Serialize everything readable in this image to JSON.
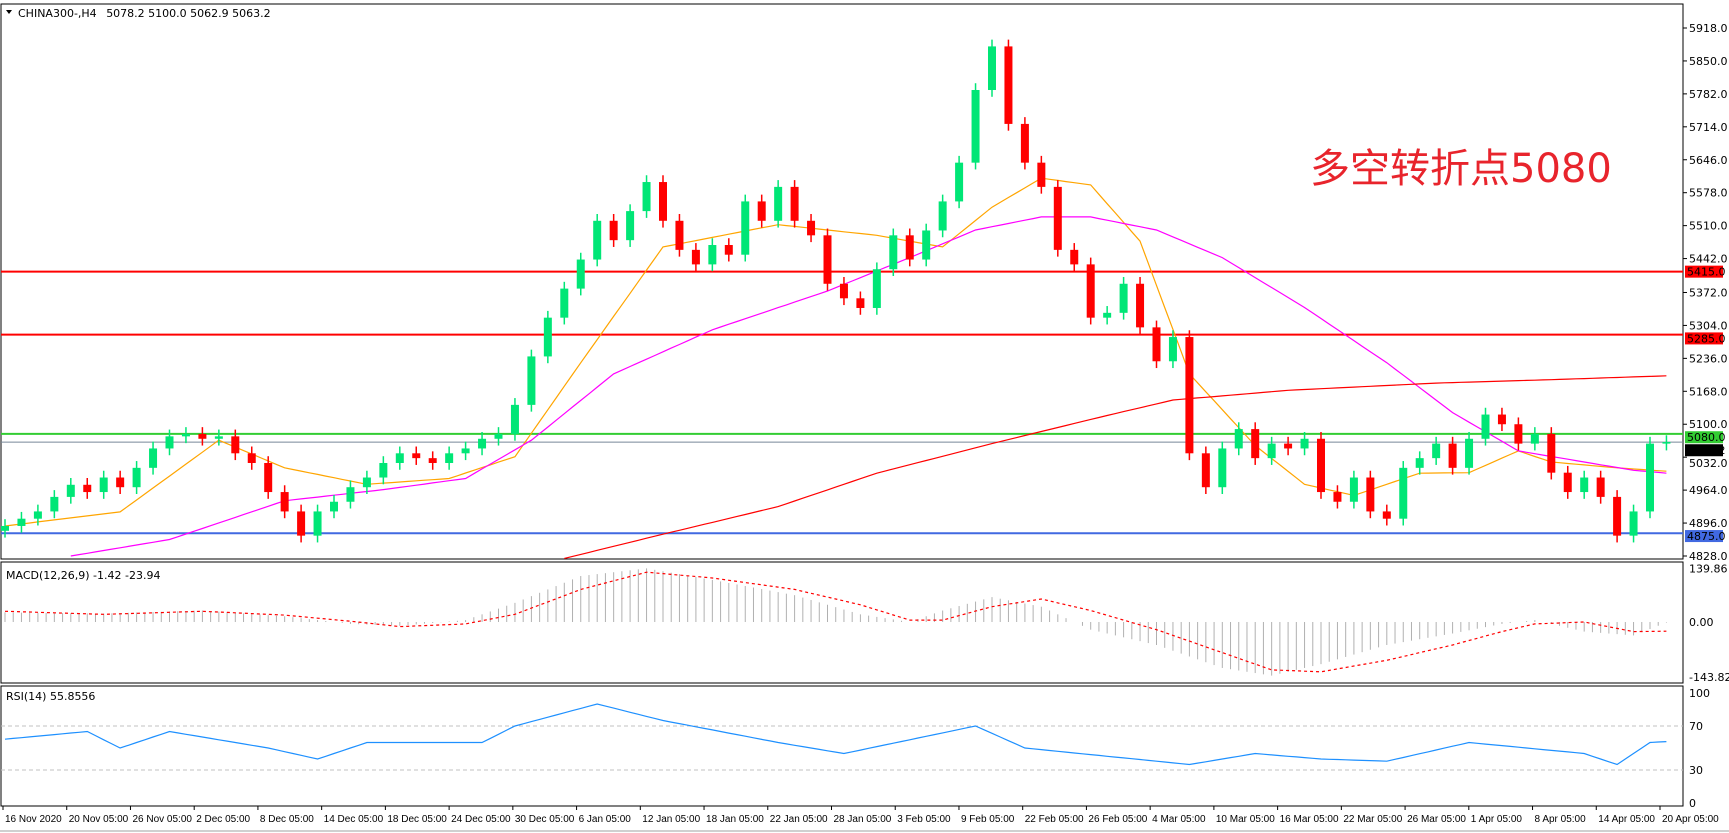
{
  "header": {
    "symbol": "CHINA300-,H4",
    "ohlc_text": "5078.2 5100.0 5062.9 5063.2"
  },
  "annotation": {
    "text": "多空转折点5080",
    "color": "#e8242c"
  },
  "colors": {
    "bull": "#00e676",
    "bear": "#ff0000",
    "ma_fast": "#ffa500",
    "ma_mid": "#ff00ff",
    "ma_slow": "#ff0000",
    "macd_hist": "#b0b0b0",
    "macd_signal": "#ff0000",
    "rsi": "#1e90ff"
  },
  "chart_data": [
    {
      "type": "candlestick",
      "title": "CHINA300-,H4",
      "ylim": [
        4828,
        5918
      ],
      "y_ticks": [
        "5918.0",
        "5850.0",
        "5782.0",
        "5714.0",
        "5646.0",
        "5578.0",
        "5510.0",
        "5442.0",
        "5372.0",
        "5304.0",
        "5236.0",
        "5168.0",
        "5100.0",
        "5032.0",
        "4964.0",
        "4896.0",
        "4828.0"
      ],
      "x_tick_labels": [
        "16 Nov 2020",
        "20 Nov 05:00",
        "26 Nov 05:00",
        "2 Dec 05:00",
        "8 Dec 05:00",
        "14 Dec 05:00",
        "18 Dec 05:00",
        "24 Dec 05:00",
        "30 Dec 05:00",
        "6 Jan 05:00",
        "12 Jan 05:00",
        "18 Jan 05:00",
        "22 Jan 05:00",
        "28 Jan 05:00",
        "3 Feb 05:00",
        "9 Feb 05:00",
        "22 Feb 05:00",
        "26 Feb 05:00",
        "4 Mar 05:00",
        "10 Mar 05:00",
        "16 Mar 05:00",
        "22 Mar 05:00",
        "26 Mar 05:00",
        "1 Apr 05:00",
        "8 Apr 05:00",
        "14 Apr 05:00",
        "20 Apr 05:00"
      ],
      "first_open": 4880,
      "close": [
        4890,
        4905,
        4920,
        4950,
        4975,
        4960,
        4990,
        4970,
        5010,
        5050,
        5075,
        5080,
        5070,
        5075,
        5040,
        5020,
        4960,
        4920,
        4870,
        4920,
        4940,
        4970,
        4990,
        5020,
        5040,
        5030,
        5020,
        5040,
        5050,
        5070,
        5080,
        5140,
        5240,
        5320,
        5380,
        5440,
        5520,
        5480,
        5540,
        5600,
        5520,
        5460,
        5430,
        5470,
        5450,
        5560,
        5520,
        5590,
        5520,
        5490,
        5390,
        5360,
        5340,
        5420,
        5490,
        5440,
        5500,
        5560,
        5640,
        5790,
        5880,
        5720,
        5640,
        5590,
        5460,
        5430,
        5320,
        5330,
        5390,
        5300,
        5230,
        5280,
        5040,
        4970,
        5050,
        5090,
        5030,
        5060,
        5050,
        5070,
        4960,
        4940,
        4990,
        4920,
        4905,
        5010,
        5030,
        5060,
        5010,
        5070,
        5120,
        5100,
        5060,
        5080,
        5000,
        4960,
        4990,
        4950,
        4870,
        4920,
        5060,
        5063.2
      ],
      "moving_averages": [
        {
          "color": "#ffa500",
          "points": [
            [
              0,
              4890
            ],
            [
              7,
              4919
            ],
            [
              13,
              5067
            ],
            [
              17,
              5010
            ],
            [
              22,
              4976
            ],
            [
              27,
              4988
            ],
            [
              31,
              5033
            ],
            [
              35,
              5227
            ],
            [
              40,
              5466
            ],
            [
              47,
              5512
            ],
            [
              50,
              5501
            ],
            [
              53,
              5490
            ],
            [
              57,
              5466
            ],
            [
              60,
              5548
            ],
            [
              63,
              5608
            ],
            [
              66,
              5594
            ],
            [
              69,
              5478
            ],
            [
              72,
              5204
            ],
            [
              76,
              5056
            ],
            [
              79,
              4976
            ],
            [
              82,
              4953
            ],
            [
              86,
              4999
            ],
            [
              89,
              5000
            ],
            [
              92,
              5045
            ],
            [
              94,
              5022
            ],
            [
              98,
              5010
            ],
            [
              101,
              5003
            ]
          ]
        },
        {
          "color": "#ff00ff",
          "points": [
            [
              4,
              4828
            ],
            [
              10,
              4862
            ],
            [
              17,
              4942
            ],
            [
              23,
              4965
            ],
            [
              28,
              4988
            ],
            [
              32,
              5067
            ],
            [
              37,
              5204
            ],
            [
              43,
              5295
            ],
            [
              50,
              5375
            ],
            [
              55,
              5444
            ],
            [
              59,
              5501
            ],
            [
              63,
              5528
            ],
            [
              66,
              5528
            ],
            [
              70,
              5501
            ],
            [
              74,
              5444
            ],
            [
              79,
              5341
            ],
            [
              84,
              5227
            ],
            [
              88,
              5124
            ],
            [
              92,
              5045
            ],
            [
              96,
              5022
            ],
            [
              99,
              5005
            ],
            [
              101,
              4999
            ]
          ]
        },
        {
          "color": "#ff0000",
          "points": [
            [
              34,
              4823
            ],
            [
              40,
              4873
            ],
            [
              47,
              4930
            ],
            [
              53,
              4999
            ],
            [
              60,
              5060
            ],
            [
              66,
              5110
            ],
            [
              71,
              5150
            ],
            [
              78,
              5170
            ],
            [
              87,
              5185
            ],
            [
              94,
              5192
            ],
            [
              101,
              5200
            ]
          ]
        }
      ],
      "horizontal_lines": [
        {
          "value": 5415.0,
          "label": "5415.0",
          "color": "#ff0000"
        },
        {
          "value": 5285.0,
          "label": "5285.0",
          "color": "#ff0000"
        },
        {
          "value": 5080.0,
          "label": "5080.0",
          "color": "#32cd32"
        },
        {
          "value": 5063.2,
          "label": "5063.2",
          "color": "#778899"
        },
        {
          "value": 4875.0,
          "label": "4875.0",
          "color": "#4169e1"
        }
      ]
    },
    {
      "type": "bar+line",
      "title": "MACD(12,26,9) -1.42 -23.94",
      "ylim": [
        -143.82,
        139.86
      ],
      "y_ticks": [
        "139.86",
        "0.00",
        "-143.82"
      ],
      "macd_points": [
        [
          0,
          25
        ],
        [
          6,
          22
        ],
        [
          12,
          30
        ],
        [
          17,
          15
        ],
        [
          21,
          -5
        ],
        [
          24,
          -10
        ],
        [
          28,
          5
        ],
        [
          31,
          50
        ],
        [
          35,
          120
        ],
        [
          39,
          140
        ],
        [
          43,
          110
        ],
        [
          48,
          70
        ],
        [
          52,
          20
        ],
        [
          55,
          0
        ],
        [
          57,
          30
        ],
        [
          60,
          65
        ],
        [
          63,
          40
        ],
        [
          66,
          -20
        ],
        [
          70,
          -60
        ],
        [
          74,
          -120
        ],
        [
          77,
          -140
        ],
        [
          80,
          -110
        ],
        [
          84,
          -60
        ],
        [
          88,
          -30
        ],
        [
          91,
          -5
        ],
        [
          93,
          5
        ],
        [
          96,
          -25
        ],
        [
          99,
          -35
        ],
        [
          101,
          -1.42
        ]
      ],
      "signal_points": [
        [
          0,
          28
        ],
        [
          6,
          20
        ],
        [
          12,
          28
        ],
        [
          17,
          18
        ],
        [
          21,
          2
        ],
        [
          24,
          -12
        ],
        [
          28,
          -5
        ],
        [
          31,
          20
        ],
        [
          35,
          85
        ],
        [
          39,
          130
        ],
        [
          43,
          115
        ],
        [
          48,
          85
        ],
        [
          52,
          45
        ],
        [
          55,
          5
        ],
        [
          57,
          5
        ],
        [
          60,
          40
        ],
        [
          63,
          60
        ],
        [
          66,
          30
        ],
        [
          70,
          -20
        ],
        [
          74,
          -80
        ],
        [
          77,
          -125
        ],
        [
          80,
          -130
        ],
        [
          84,
          -100
        ],
        [
          88,
          -60
        ],
        [
          91,
          -25
        ],
        [
          93,
          -5
        ],
        [
          96,
          0
        ],
        [
          99,
          -25
        ],
        [
          101,
          -23.94
        ]
      ]
    },
    {
      "type": "line",
      "title": "RSI(14) 55.8556",
      "ylim": [
        0,
        100
      ],
      "y_ticks": [
        "100",
        "70",
        "30",
        "0"
      ],
      "levels": [
        70,
        30
      ],
      "points": [
        [
          0,
          58
        ],
        [
          5,
          65
        ],
        [
          7,
          50
        ],
        [
          10,
          65
        ],
        [
          16,
          50
        ],
        [
          19,
          40
        ],
        [
          22,
          55
        ],
        [
          29,
          55
        ],
        [
          31,
          70
        ],
        [
          36,
          90
        ],
        [
          40,
          75
        ],
        [
          47,
          55
        ],
        [
          51,
          45
        ],
        [
          59,
          70
        ],
        [
          62,
          50
        ],
        [
          72,
          35
        ],
        [
          76,
          45
        ],
        [
          80,
          40
        ],
        [
          84,
          38
        ],
        [
          89,
          55
        ],
        [
          96,
          45
        ],
        [
          98,
          35
        ],
        [
          100,
          55
        ],
        [
          101,
          55.8556
        ]
      ]
    }
  ]
}
